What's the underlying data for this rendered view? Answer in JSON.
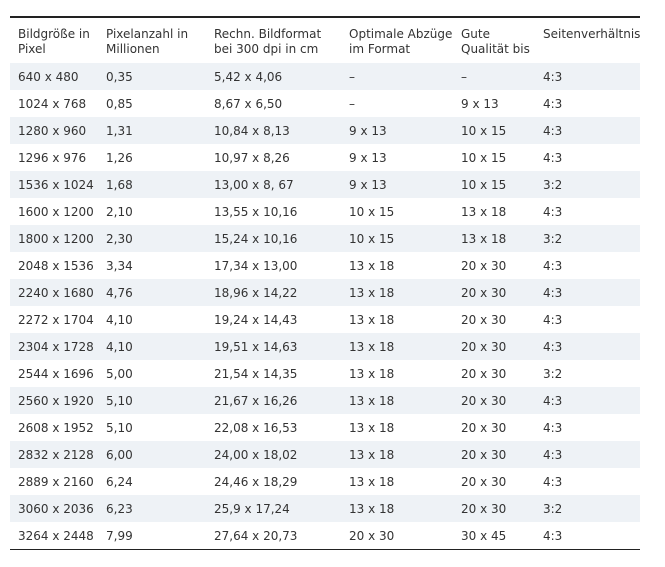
{
  "table": {
    "headers": [
      "Bildgröße in Pixel",
      "Pixelanzahl in Millionen",
      "Rechn. Bildformat bei 300 dpi in cm",
      "Optimale Abzüge im Format",
      "Gute Qualität bis",
      "Seitenverhältnis"
    ],
    "rows": [
      [
        "640 x 480",
        "0,35",
        "5,42 x 4,06",
        "–",
        "–",
        "4:3"
      ],
      [
        "1024 x 768",
        "0,85",
        "8,67 x 6,50",
        "–",
        "9 x 13",
        "4:3"
      ],
      [
        "1280 x 960",
        "1,31",
        "10,84 x 8,13",
        "9 x 13",
        "10 x 15",
        "4:3"
      ],
      [
        "1296 x 976",
        "1,26",
        "10,97 x 8,26",
        "9 x 13",
        "10 x 15",
        "4:3"
      ],
      [
        "1536 x 1024",
        "1,68",
        "13,00 x 8, 67",
        "9 x 13",
        "10 x 15",
        "3:2"
      ],
      [
        "1600 x 1200",
        "2,10",
        "13,55 x 10,16",
        "10 x 15",
        "13 x 18",
        "4:3"
      ],
      [
        "1800 x 1200",
        "2,30",
        "15,24 x 10,16",
        "10 x 15",
        "13 x 18",
        "3:2"
      ],
      [
        "2048 x 1536",
        "3,34",
        "17,34 x 13,00",
        "13 x 18",
        "20 x 30",
        "4:3"
      ],
      [
        "2240 x 1680",
        "4,76",
        "18,96 x 14,22",
        "13 x 18",
        "20 x 30",
        "4:3"
      ],
      [
        "2272 x 1704",
        "4,10",
        "19,24 x 14,43",
        "13 x 18",
        "20 x 30",
        "4:3"
      ],
      [
        "2304 x 1728",
        "4,10",
        "19,51 x 14,63",
        "13 x 18",
        "20 x 30",
        "4:3"
      ],
      [
        "2544 x 1696",
        "5,00",
        "21,54 x 14,35",
        "13 x 18",
        "20 x 30",
        "3:2"
      ],
      [
        "2560 x 1920",
        "5,10",
        "21,67 x 16,26",
        "13 x 18",
        "20 x 30",
        "4:3"
      ],
      [
        "2608 x 1952",
        "5,10",
        "22,08 x 16,53",
        "13 x 18",
        "20 x 30",
        "4:3"
      ],
      [
        "2832 x 2128",
        "6,00",
        "24,00 x 18,02",
        "13 x 18",
        "20 x 30",
        "4:3"
      ],
      [
        "2889 x 2160",
        "6,24",
        "24,46 x 18,29",
        "13 x 18",
        "20 x 30",
        "4:3"
      ],
      [
        "3060 x 2036",
        "6,23",
        "25,9 x 17,24",
        "13 x 18",
        "20 x 30",
        "3:2"
      ],
      [
        "3264 x 2448",
        "7,99",
        "27,64 x 20,73",
        "20 x 30",
        "30 x 45",
        "4:3"
      ]
    ]
  }
}
